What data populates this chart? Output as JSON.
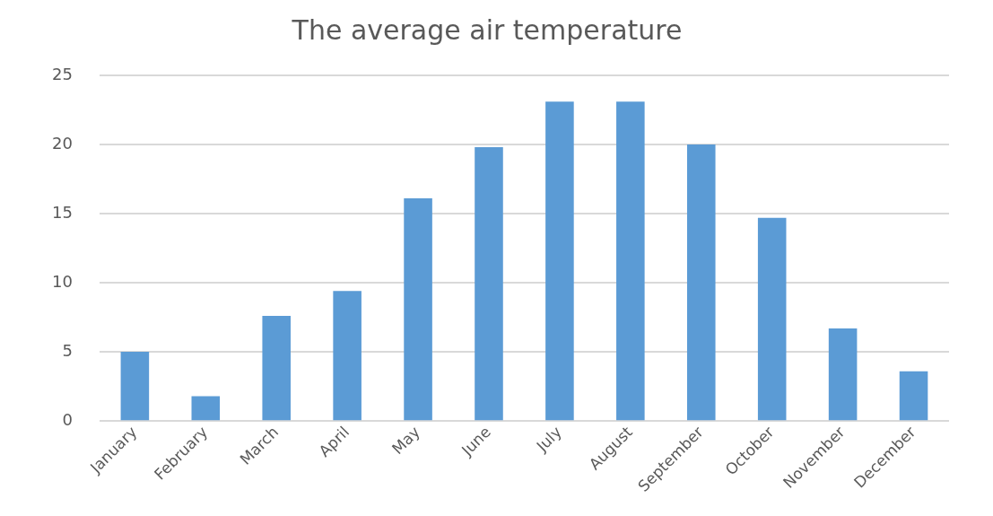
{
  "chart_data": {
    "type": "bar",
    "title": "The average air temperature",
    "categories": [
      "January",
      "February",
      "March",
      "April",
      "May",
      "June",
      "July",
      "August",
      "September",
      "October",
      "November",
      "December"
    ],
    "values": [
      5.0,
      1.8,
      7.6,
      9.4,
      16.1,
      19.8,
      23.1,
      23.1,
      20.0,
      14.7,
      6.7,
      3.6
    ],
    "color": "#5b9bd5",
    "ylim": [
      0,
      25
    ],
    "yticks": [
      0,
      5,
      10,
      15,
      20,
      25
    ],
    "grid": "y"
  }
}
